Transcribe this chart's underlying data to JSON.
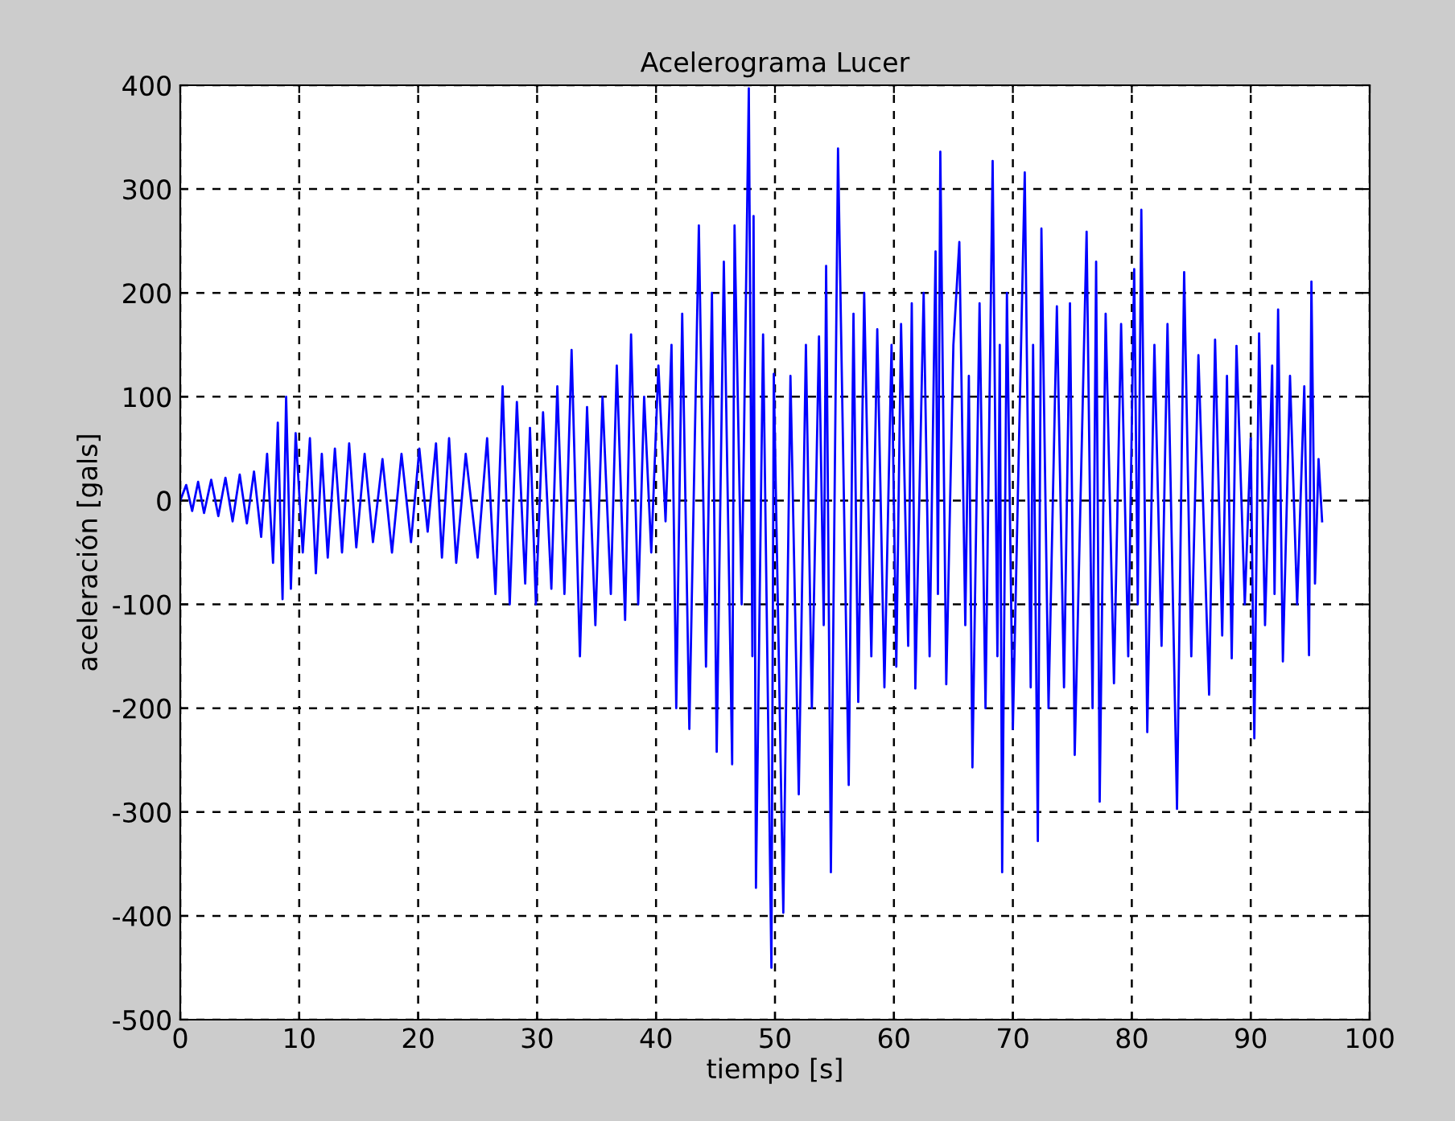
{
  "chart_data": {
    "type": "line",
    "title": "Acelerograma Lucer",
    "xlabel": "tiempo [s]",
    "ylabel": "aceleración [gals]",
    "xlim": [
      0,
      100
    ],
    "xticks": [
      0,
      10,
      20,
      30,
      40,
      50,
      60,
      70,
      80,
      90,
      100
    ],
    "ylim": [
      -500,
      400
    ],
    "yticks": [
      -500,
      -400,
      -300,
      -200,
      -100,
      0,
      100,
      200,
      300,
      400
    ],
    "grid": true,
    "line_style": "solid",
    "marker": "none",
    "series": [
      {
        "color": "#0000ff",
        "x": [
          0,
          0.5,
          1,
          1.5,
          2,
          2.6,
          3.2,
          3.8,
          4.4,
          5,
          5.6,
          6.2,
          6.8,
          7.3,
          7.8,
          8.2,
          8.6,
          8.9,
          9.3,
          9.7,
          10.3,
          10.9,
          11.4,
          11.9,
          12.4,
          13,
          13.6,
          14.2,
          14.8,
          15.5,
          16.2,
          17,
          17.8,
          18.6,
          19.4,
          20.1,
          20.8,
          21.5,
          22,
          22.6,
          23.2,
          24,
          25,
          25.8,
          26.5,
          27.1,
          27.7,
          28.3,
          29,
          29.4,
          29.9,
          30.5,
          31.2,
          31.7,
          32.3,
          32.9,
          33.6,
          34.2,
          34.9,
          35.5,
          36.2,
          36.7,
          37.4,
          37.9,
          38.5,
          39,
          39.6,
          40.2,
          40.8,
          41.3,
          41.7,
          42.2,
          42.8,
          43.6,
          44.2,
          44.7,
          45.1,
          45.7,
          46.4,
          46.6,
          47.2,
          47.8,
          48.1,
          48.2,
          48.4,
          49,
          49.7,
          49.9,
          50.7,
          51.3,
          52,
          52.6,
          53.1,
          53.7,
          54.1,
          54.3,
          54.7,
          55.3,
          56.2,
          56.6,
          57,
          57.5,
          58.1,
          58.6,
          59.2,
          59.8,
          60.2,
          60.6,
          61.2,
          61.5,
          61.8,
          62.5,
          63,
          63.5,
          63.7,
          63.9,
          64.4,
          65,
          65.5,
          66,
          66.3,
          66.6,
          67.2,
          67.7,
          68.3,
          68.7,
          68.9,
          69.1,
          69.5,
          70,
          71,
          71.5,
          71.7,
          72.1,
          72.4,
          73,
          73.7,
          74.3,
          74.8,
          75.2,
          76.2,
          76.7,
          77,
          77.3,
          77.8,
          78.5,
          79.1,
          79.7,
          80.2,
          80.5,
          80.8,
          81.3,
          81.9,
          82.5,
          83,
          83.8,
          84.4,
          85,
          85.6,
          86.5,
          87,
          87.6,
          88,
          88.4,
          88.8,
          89.5,
          90,
          90.3,
          90.7,
          91.2,
          91.8,
          92,
          92.3,
          92.7,
          93.3,
          93.9,
          94.5,
          94.9,
          95.1,
          95.4,
          95.7,
          96
        ],
        "values": [
          0,
          15,
          -10,
          18,
          -12,
          20,
          -15,
          22,
          -20,
          25,
          -22,
          28,
          -35,
          45,
          -60,
          75,
          -95,
          100,
          -85,
          65,
          -50,
          60,
          -70,
          45,
          -55,
          50,
          -50,
          55,
          -45,
          45,
          -40,
          40,
          -50,
          45,
          -40,
          50,
          -30,
          55,
          -55,
          60,
          -60,
          45,
          -55,
          60,
          -90,
          110,
          -100,
          95,
          -80,
          70,
          -100,
          85,
          -85,
          110,
          -90,
          145,
          -150,
          90,
          -120,
          100,
          -90,
          130,
          -115,
          160,
          -100,
          100,
          -50,
          130,
          -20,
          150,
          -200,
          180,
          -220,
          265,
          -160,
          200,
          -242,
          230,
          -254,
          265,
          -100,
          397,
          -150,
          274,
          -373,
          160,
          -450,
          122,
          -397,
          120,
          -283,
          150,
          -200,
          158,
          -120,
          226,
          -358,
          339,
          -274,
          180,
          -194,
          200,
          -150,
          165,
          -180,
          150,
          -160,
          170,
          -140,
          190,
          -181,
          200,
          -150,
          240,
          -90,
          336,
          -177,
          150,
          249,
          -120,
          120,
          -257,
          190,
          -200,
          327,
          -150,
          150,
          -358,
          200,
          -220,
          316,
          -180,
          150,
          -328,
          262,
          -200,
          187,
          -180,
          190,
          -245,
          259,
          -200,
          230,
          -290,
          180,
          -176,
          170,
          -150,
          223,
          -100,
          280,
          -223,
          150,
          -140,
          170,
          -297,
          220,
          -150,
          140,
          -187,
          155,
          -130,
          120,
          -152,
          149,
          -100,
          60,
          -229,
          161,
          -120,
          130,
          -90,
          184,
          -155,
          120,
          -100,
          110,
          -149,
          211,
          -80,
          40,
          -20
        ]
      }
    ]
  }
}
